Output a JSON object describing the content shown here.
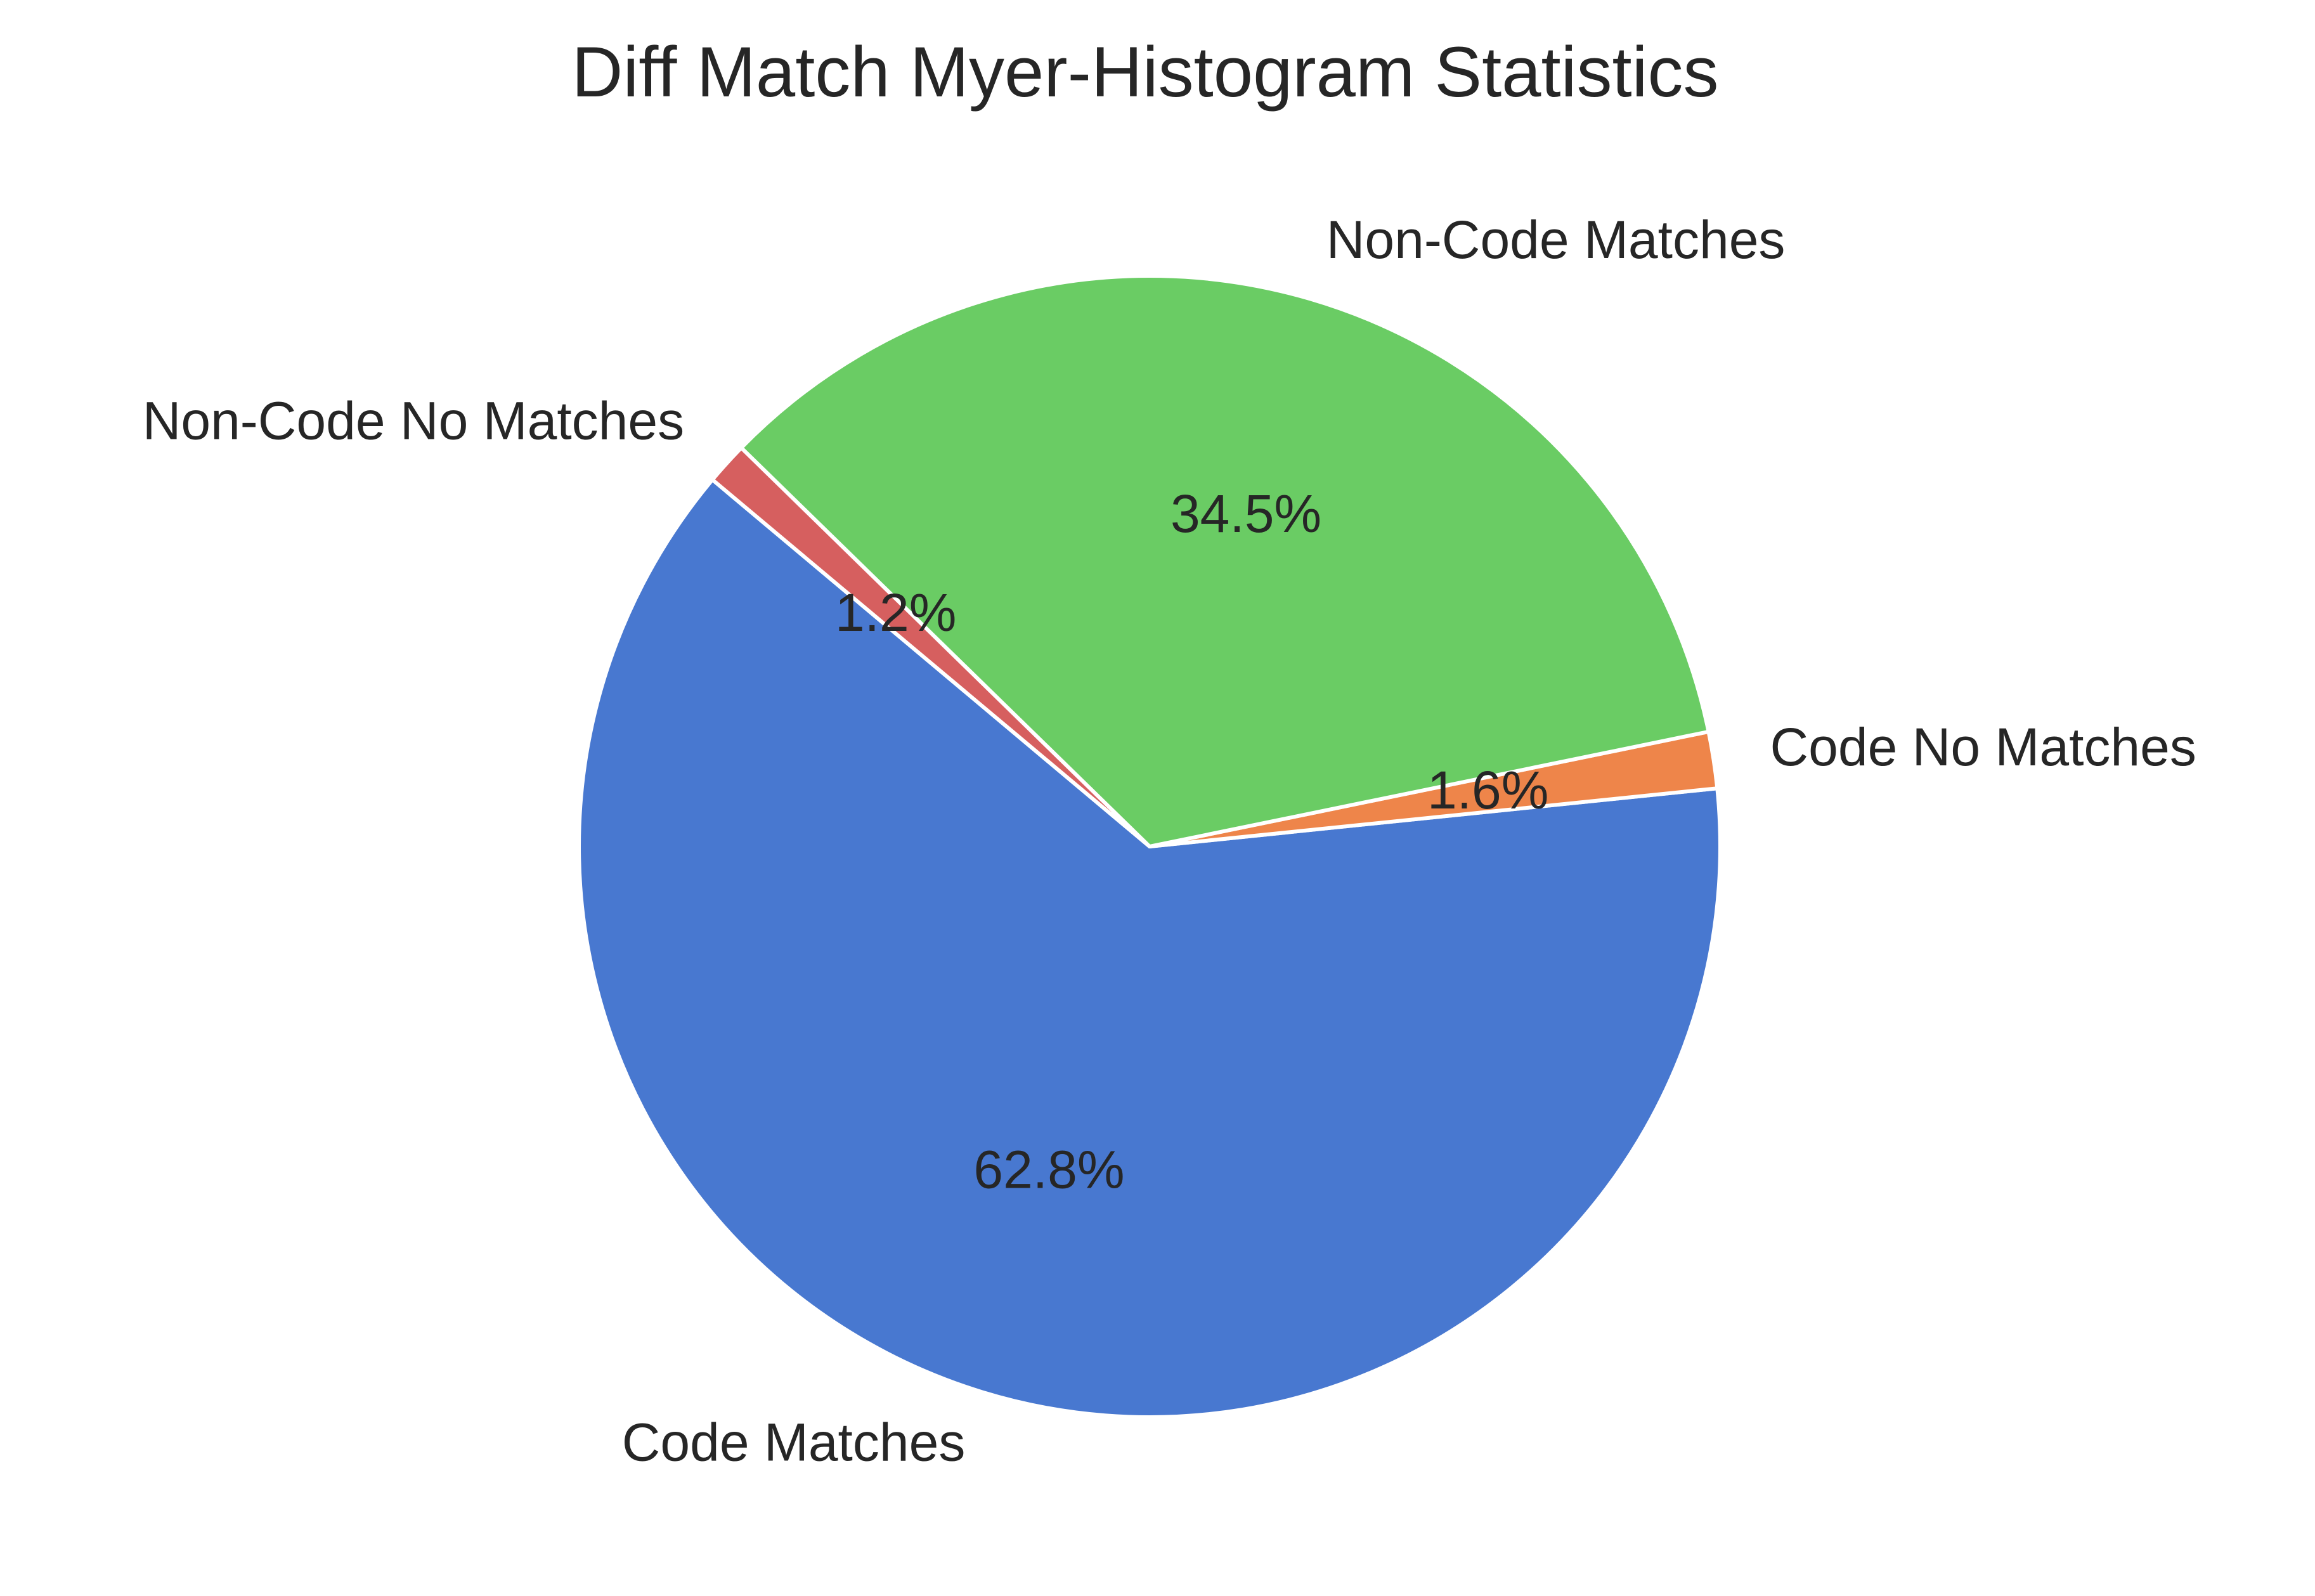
{
  "chart_data": {
    "type": "pie",
    "title": "Diff Match Myer-Histogram Statistics",
    "start_angle_degrees": 140,
    "direction": "counterclockwise",
    "slices": [
      {
        "label": "Code Matches",
        "value": 62.8,
        "pct_label": "62.8%",
        "color": "#4878d0"
      },
      {
        "label": "Code No Matches",
        "value": 1.6,
        "pct_label": "1.6%",
        "color": "#ee854a"
      },
      {
        "label": "Non-Code Matches",
        "value": 34.5,
        "pct_label": "34.5%",
        "color": "#6acc64"
      },
      {
        "label": "Non-Code No Matches",
        "value": 1.2,
        "pct_label": "1.2%",
        "color": "#d65f5f"
      }
    ],
    "wedge_edge_color": "#ffffff"
  }
}
